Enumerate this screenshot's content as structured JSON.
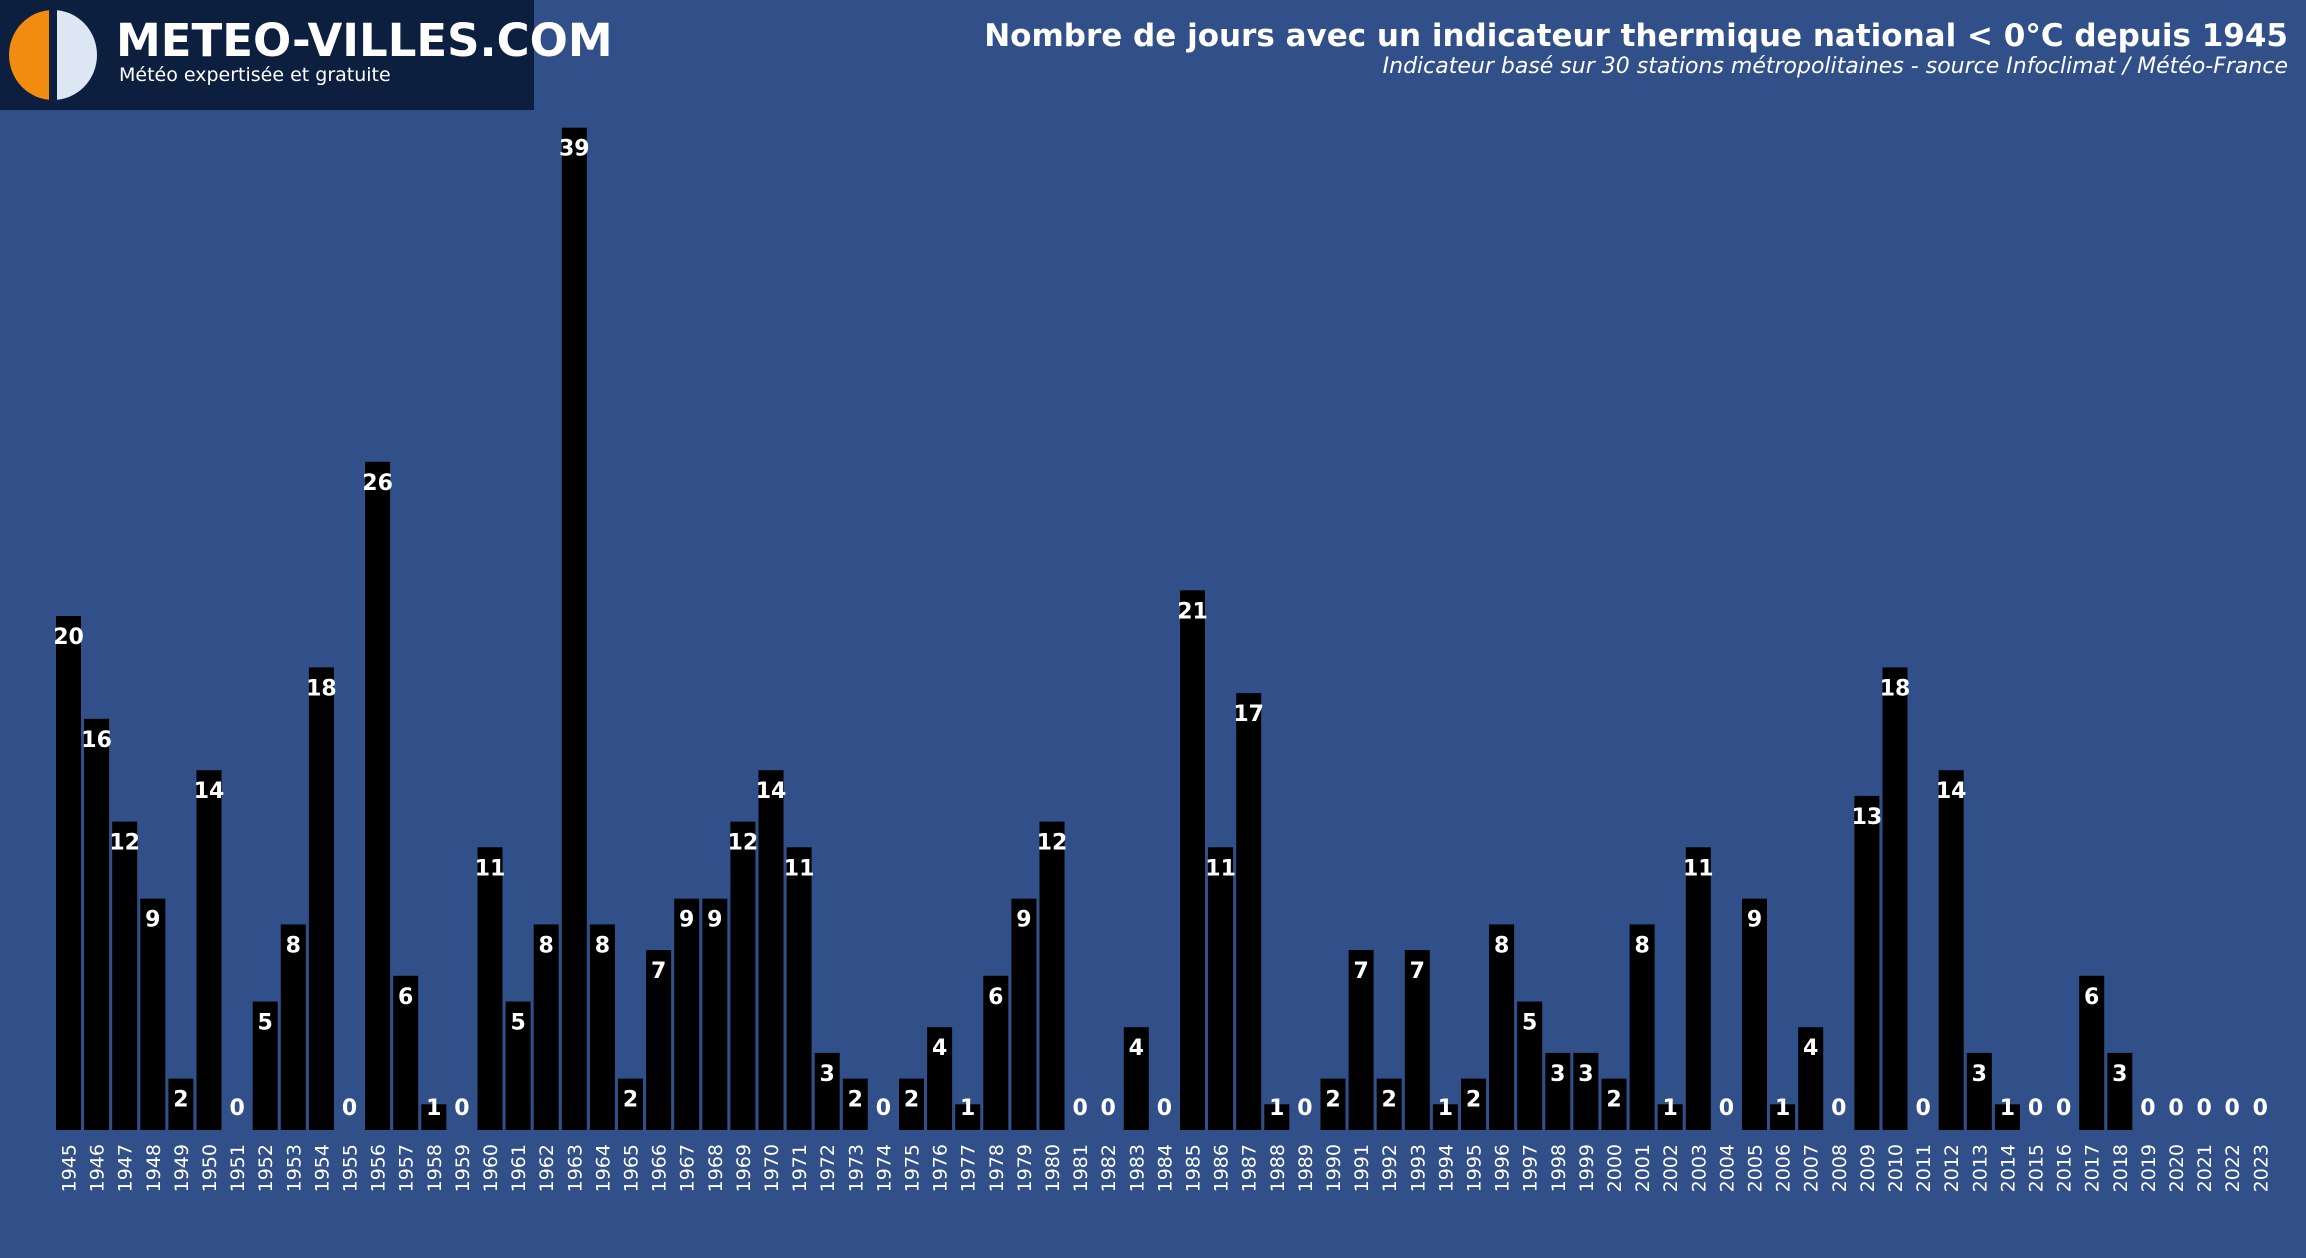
{
  "brand": {
    "name": "METEO-VILLES.COM",
    "tagline": "Météo expertisée et gratuite",
    "logo_icon": "half-circle-logo-icon"
  },
  "colors": {
    "background": "#314f88",
    "bar": "#000000",
    "label": "#ffffff",
    "logo_bg": "#0d1f3f",
    "logo_orange": "#f28c11",
    "logo_light": "#dde7f3"
  },
  "chart_data": {
    "type": "bar",
    "title": "Nombre de jours avec un indicateur thermique national < 0°C depuis 1945",
    "subtitle": "Indicateur basé sur 30 stations métropolitaines - source Infoclimat / Météo-France",
    "xlabel": "",
    "ylabel": "",
    "ylim": [
      0,
      40
    ],
    "grid": false,
    "legend": "none",
    "categories": [
      "1945",
      "1946",
      "1947",
      "1948",
      "1949",
      "1950",
      "1951",
      "1952",
      "1953",
      "1954",
      "1955",
      "1956",
      "1957",
      "1958",
      "1959",
      "1960",
      "1961",
      "1962",
      "1963",
      "1964",
      "1965",
      "1966",
      "1967",
      "1968",
      "1969",
      "1970",
      "1971",
      "1972",
      "1973",
      "1974",
      "1975",
      "1976",
      "1977",
      "1978",
      "1979",
      "1980",
      "1981",
      "1982",
      "1983",
      "1984",
      "1985",
      "1986",
      "1987",
      "1988",
      "1989",
      "1990",
      "1991",
      "1992",
      "1993",
      "1994",
      "1995",
      "1996",
      "1997",
      "1998",
      "1999",
      "2000",
      "2001",
      "2002",
      "2003",
      "2004",
      "2005",
      "2006",
      "2007",
      "2008",
      "2009",
      "2010",
      "2011",
      "2012",
      "2013",
      "2014",
      "2015",
      "2016",
      "2017",
      "2018",
      "2019",
      "2020",
      "2021",
      "2022",
      "2023"
    ],
    "values": [
      20,
      16,
      12,
      9,
      2,
      14,
      0,
      5,
      8,
      18,
      0,
      26,
      6,
      1,
      0,
      11,
      5,
      8,
      39,
      8,
      2,
      7,
      9,
      9,
      12,
      14,
      11,
      3,
      2,
      0,
      2,
      4,
      1,
      6,
      9,
      12,
      0,
      0,
      4,
      0,
      21,
      11,
      17,
      1,
      0,
      2,
      7,
      2,
      7,
      1,
      2,
      8,
      5,
      3,
      3,
      2,
      8,
      1,
      11,
      0,
      9,
      1,
      4,
      0,
      13,
      18,
      0,
      14,
      3,
      1,
      0,
      0,
      6,
      3,
      0,
      0,
      0,
      0,
      0
    ]
  }
}
